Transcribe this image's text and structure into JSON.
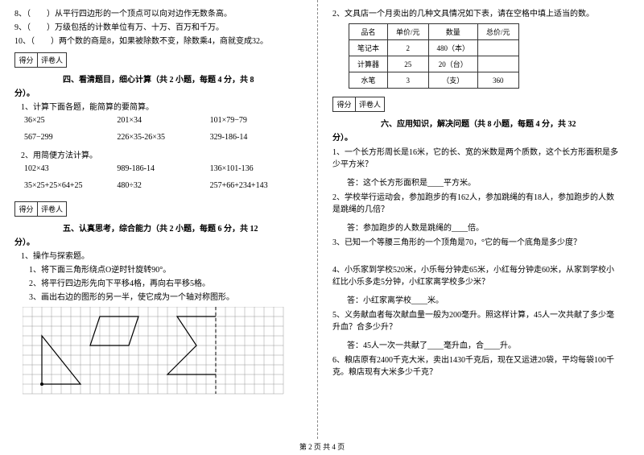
{
  "left": {
    "q8": "8、（　　）从平行四边形的一个顶点可以向对边作无数条高。",
    "q9": "9、（　　）万级包括的计数单位有万、十万、百万和千万。",
    "q10": "10、（　　）两个数的商是8，如果被除数不变，除数乘4，商就变成32。",
    "score_h1": "得分",
    "score_h2": "评卷人",
    "sec4_title": "四、看清题目，细心计算（共 2 小题，每题 4 分，共 8",
    "sec4_tail": "分）。",
    "s4_q1": "1、计算下面各题，能简算的要简算。",
    "s4_r1a": "36×25",
    "s4_r1b": "201×34",
    "s4_r1c": "101×79−79",
    "s4_r2a": "567−299",
    "s4_r2b": "226×35-26×35",
    "s4_r2c": "329-186-14",
    "s4_q2": "2、用简便方法计算。",
    "s4_r3a": "102×43",
    "s4_r3b": "989-186-14",
    "s4_r3c": "136×101-136",
    "s4_r4a": "35×25+25×64+25",
    "s4_r4b": "480÷32",
    "s4_r4c": "257+66+234+143",
    "sec5_title": "五、认真思考，综合能力（共 2 小题，每题 6 分，共 12",
    "sec5_tail": "分）。",
    "s5_q1": "1、操作与探索题。",
    "s5_q1a": "1、将下面三角形绕点O逆时针旋转90°。",
    "s5_q1b": "2、将平行四边形先向下平移4格，再向右平移5格。",
    "s5_q1c": "3、画出右边的图形的另一半，使它成为一个轴对称图形。"
  },
  "right": {
    "s5_q2": "2、文具店一个月卖出的几种文具情况如下表，请在空格中填上适当的数。",
    "tbl_h": [
      "品名",
      "单价/元",
      "数量",
      "总价/元"
    ],
    "tbl_r1": [
      "笔记本",
      "2",
      "480（本）",
      ""
    ],
    "tbl_r2": [
      "计算器",
      "25",
      "20（台）",
      ""
    ],
    "tbl_r3": [
      "水笔",
      "3",
      "（支）",
      "360"
    ],
    "score_h1": "得分",
    "score_h2": "评卷人",
    "sec6_title": "六、应用知识，解决问题（共 8 小题，每题 4 分，共 32",
    "sec6_tail": "分）。",
    "q1": "1、一个长方形周长是16米，它的长、宽的米数是两个质数，这个长方形面积是多少平方米？",
    "a1": "答：这个长方形面积是____平方米。",
    "q2": "2、学校举行运动会，参加跑步的有162人，参加跳绳的有18人，参加跑步的人数是跳绳的几倍？",
    "a2": "答：参加跑步的人数是跳绳的____倍。",
    "q3": "3、已知一个等腰三角形的一个顶角是70，°它的每一个底角是多少度？",
    "q4": "4、小乐家到学校520米，小乐每分钟走65米，小红每分钟走60米，从家到学校小红比小乐多走5分钟，小红家离学校多少米？",
    "a4": "答：小红家离学校____米。",
    "q5": "5、义务献血者每次献血量一般为200毫升。照这样计算，45人一次共献了多少毫升血？合多少升？",
    "a5": "答：45人一次一共献了____毫升血，合____升。",
    "q6": "6、粮店原有2400千克大米，卖出1430千克后，现在又运进20袋，平均每袋100千克。粮店现有大米多少千克？"
  },
  "footer": "第 2 页 共 4 页",
  "grid": {
    "cols": 27,
    "rows": 9,
    "cell": 12
  }
}
